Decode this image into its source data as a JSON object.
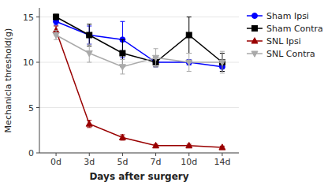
{
  "chart_data": {
    "type": "line",
    "xlabel": "Days after surgery",
    "ylabel": "Mechanicla threshold(g)",
    "categories": [
      "0d",
      "3d",
      "5d",
      "7d",
      "10d",
      "14d"
    ],
    "series": [
      {
        "name": "Sham Ipsi",
        "color": "#0000FF",
        "marker": "circle",
        "values": [
          14.5,
          13.0,
          12.5,
          10.0,
          10.0,
          9.5
        ],
        "errors": [
          0.4,
          1.0,
          2.0,
          0.5,
          0.3,
          0.5
        ]
      },
      {
        "name": "Sham Contra",
        "color": "#000000",
        "marker": "square",
        "values": [
          15.0,
          13.0,
          11.0,
          10.0,
          13.0,
          10.0
        ],
        "errors": [
          0.3,
          1.2,
          1.5,
          0.5,
          2.0,
          1.0
        ]
      },
      {
        "name": "SNL Ipsi",
        "color": "#990000",
        "marker": "triangle-up",
        "values": [
          13.5,
          3.2,
          1.7,
          0.8,
          0.8,
          0.6
        ],
        "errors": [
          0.5,
          0.4,
          0.3,
          0.15,
          0.15,
          0.15
        ]
      },
      {
        "name": "SNL Contra",
        "color": "#aaaaaa",
        "marker": "triangle-down",
        "values": [
          13.0,
          11.0,
          9.5,
          10.5,
          10.0,
          10.0
        ],
        "errors": [
          0.5,
          1.0,
          0.8,
          1.0,
          1.0,
          1.2
        ]
      }
    ],
    "ylim": [
      0,
      16
    ],
    "yticks": [
      0,
      5,
      10,
      15
    ],
    "legend": "upper right"
  }
}
